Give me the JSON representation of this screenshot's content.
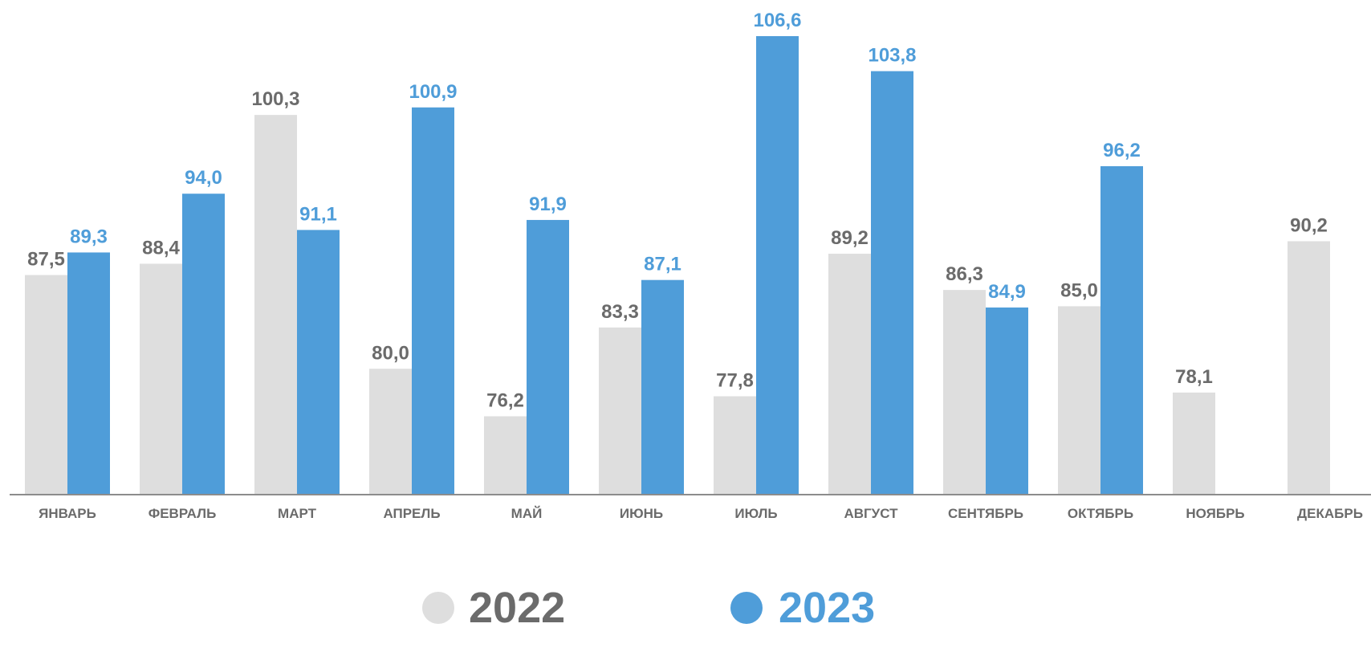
{
  "chart_data": {
    "type": "bar",
    "categories": [
      "ЯНВАРЬ",
      "ФЕВРАЛЬ",
      "МАРТ",
      "АПРЕЛЬ",
      "МАЙ",
      "ИЮНЬ",
      "ИЮЛЬ",
      "АВГУСТ",
      "СЕНТЯБРЬ",
      "ОКТЯБРЬ",
      "НОЯБРЬ",
      "ДЕКАБРЬ"
    ],
    "series": [
      {
        "name": "2022",
        "color": "#dedede",
        "label_color": "#6b6b6b",
        "values": [
          87.5,
          88.4,
          100.3,
          80.0,
          76.2,
          83.3,
          77.8,
          89.2,
          86.3,
          85.0,
          78.1,
          90.2
        ],
        "labels": [
          "87,5",
          "88,4",
          "100,3",
          "80,0",
          "76,2",
          "83,3",
          "77,8",
          "89,2",
          "86,3",
          "85,0",
          "78,1",
          "90,2"
        ]
      },
      {
        "name": "2023",
        "color": "#4f9dd9",
        "label_color": "#4f9dd9",
        "values": [
          89.3,
          94.0,
          91.1,
          100.9,
          91.9,
          87.1,
          106.6,
          103.8,
          84.9,
          96.2,
          null,
          null
        ],
        "labels": [
          "89,3",
          "94,0",
          "91,1",
          "100,9",
          "91,9",
          "87,1",
          "106,6",
          "103,8",
          "84,9",
          "96,2",
          "",
          ""
        ]
      }
    ],
    "ylim": [
      70,
      107.5
    ],
    "grid": false,
    "legend_position": "bottom-center",
    "axis_color": "#8c8c8c"
  }
}
